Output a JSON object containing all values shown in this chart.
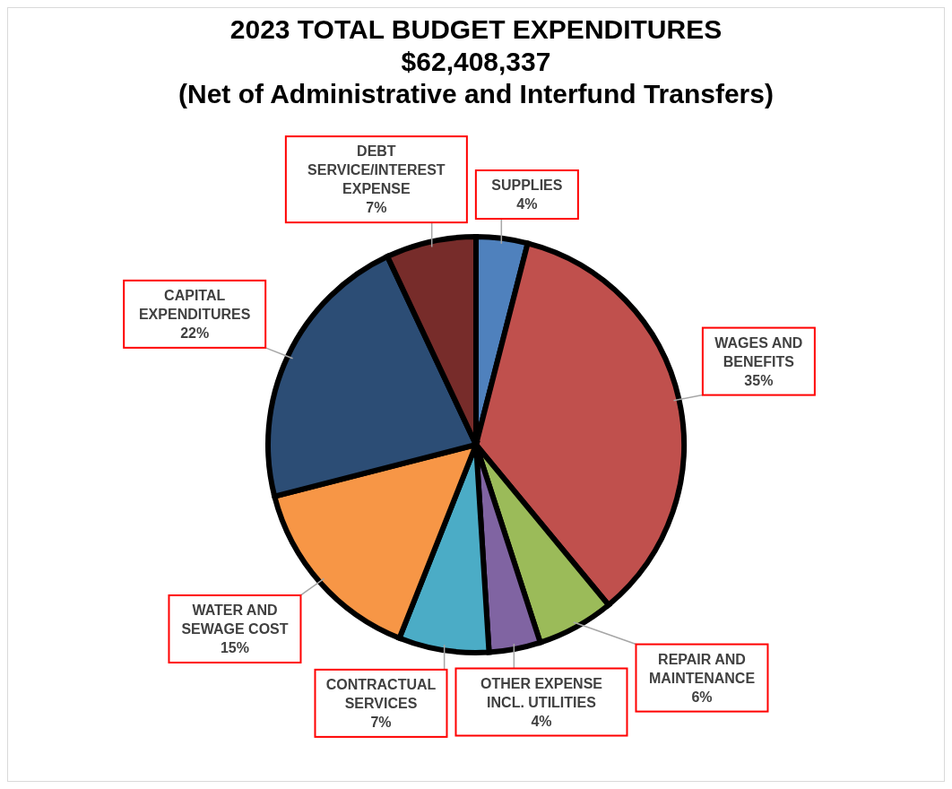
{
  "chart_data": {
    "type": "pie",
    "title": "2023 TOTAL BUDGET EXPENDITURES\n$62,408,337\n(Net of Administrative and Interfund Transfers)",
    "categories": [
      "SUPPLIES",
      "WAGES AND BENEFITS",
      "REPAIR AND MAINTENANCE",
      "OTHER EXPENSE INCL. UTILITIES",
      "CONTRACTUAL SERVICES",
      "WATER AND SEWAGE COST",
      "CAPITAL EXPENDITURES",
      "DEBT SERVICE/INTEREST EXPENSE"
    ],
    "values": [
      4,
      35,
      6,
      4,
      7,
      15,
      22,
      7
    ],
    "value_labels": [
      "4%",
      "35%",
      "6%",
      "4%",
      "7%",
      "15%",
      "22%",
      "7%"
    ],
    "colors": [
      "#4f81bd",
      "#c0504d",
      "#9bbb59",
      "#8064a2",
      "#4bacc6",
      "#f79646",
      "#2c4d75",
      "#772c2a"
    ],
    "legend": false
  }
}
